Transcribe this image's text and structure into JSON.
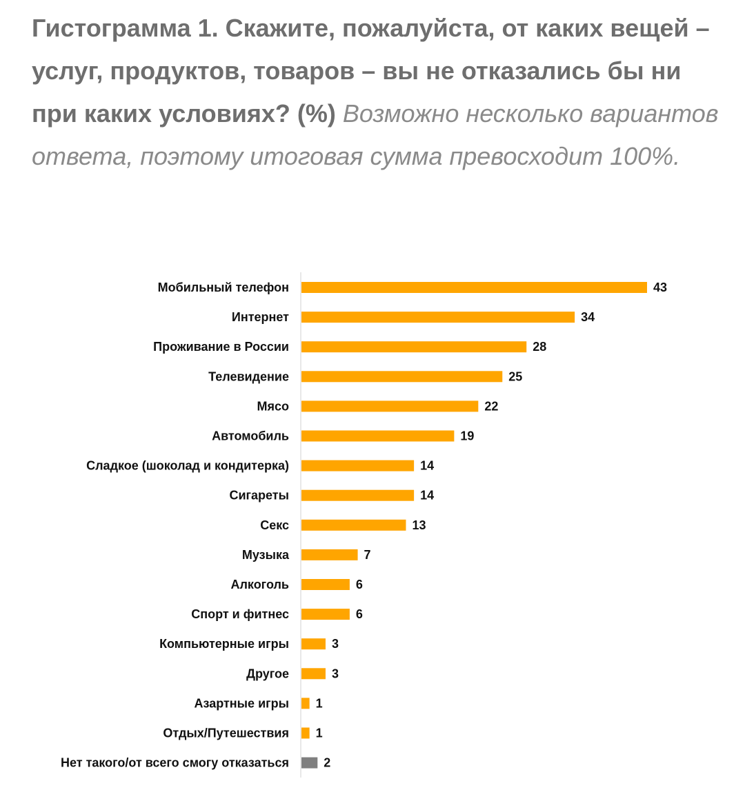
{
  "caption": {
    "title": "Гистограмма 1. Скажите, пожалуйста, от каких вещей – услуг, продуктов, товаров – вы не отказались бы ни при каких условиях? (%)",
    "note": "Возможно несколько вариантов ответа, поэтому итоговая сумма превосходит 100%."
  },
  "colors": {
    "bar": "#FFA500",
    "bar_other": "#7F7F7F",
    "axis": "#d0d0d0"
  },
  "chart_data": {
    "type": "bar",
    "orientation": "horizontal",
    "categories": [
      "Мобильный телефон",
      "Интернет",
      "Проживание в России",
      "Телевидение",
      "Мясо",
      "Автомобиль",
      "Сладкое (шоколад и кондитерка)",
      "Сигареты",
      "Секс",
      "Музыка",
      "Алкоголь",
      "Спорт и фитнес",
      "Компьютерные игры",
      "Другое",
      "Азартные игры",
      "Отдых/Путешествия",
      "Нет такого/от всего смогу отказаться"
    ],
    "values": [
      43,
      34,
      28,
      25,
      22,
      19,
      14,
      14,
      13,
      7,
      6,
      6,
      3,
      3,
      1,
      1,
      2
    ],
    "highlight_last": true,
    "xlim": [
      0,
      43
    ],
    "grid": false,
    "data_labels": true
  }
}
